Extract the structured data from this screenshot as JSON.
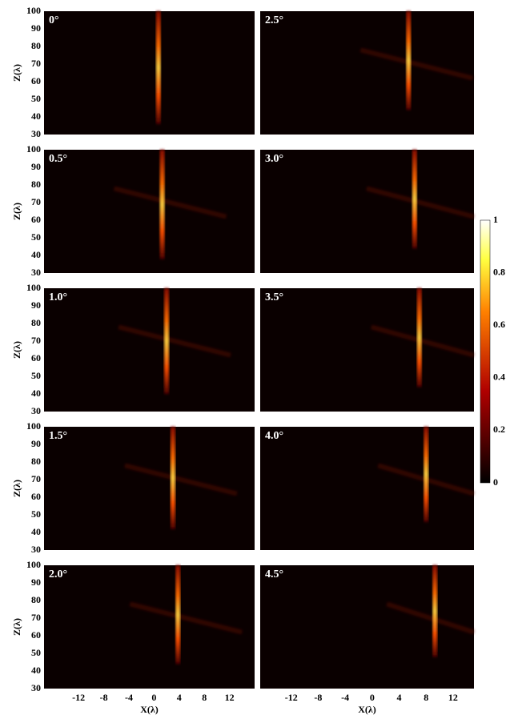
{
  "chart_data": [
    {
      "type": "heatmap",
      "label": "0°",
      "beam_x": 0.7,
      "beam_z": [
        36,
        100
      ],
      "xlim": [
        -17.5,
        16
      ],
      "ylim": [
        30,
        100
      ],
      "yticks": [
        30,
        40,
        50,
        60,
        70,
        80,
        90,
        100
      ],
      "ylabel": "Z(λ)"
    },
    {
      "type": "heatmap",
      "label": "0.5°",
      "beam_x": 1.3,
      "beam_z": [
        38,
        100
      ],
      "xlim": [
        -17.5,
        16
      ],
      "ylim": [
        30,
        100
      ],
      "yticks": [
        30,
        40,
        50,
        60,
        70,
        80,
        90,
        100
      ],
      "ylabel": "Z(λ)"
    },
    {
      "type": "heatmap",
      "label": "1.0°",
      "beam_x": 2,
      "beam_z": [
        40,
        100
      ],
      "xlim": [
        -17.5,
        16
      ],
      "ylim": [
        30,
        100
      ],
      "yticks": [
        30,
        40,
        50,
        60,
        70,
        80,
        90,
        100
      ],
      "ylabel": "Z(λ)"
    },
    {
      "type": "heatmap",
      "label": "1.5°",
      "beam_x": 3,
      "beam_z": [
        42,
        100
      ],
      "xlim": [
        -17.5,
        16
      ],
      "ylim": [
        30,
        100
      ],
      "yticks": [
        30,
        40,
        50,
        60,
        70,
        80,
        90,
        100
      ],
      "ylabel": "Z(λ)"
    },
    {
      "type": "heatmap",
      "label": "2.0°",
      "beam_x": 3.8,
      "beam_z": [
        44,
        100
      ],
      "xlim": [
        -17.5,
        16
      ],
      "ylim": [
        30,
        100
      ],
      "yticks": [
        30,
        40,
        50,
        60,
        70,
        80,
        90,
        100
      ],
      "ylabel": "Z(λ)",
      "xticks": [
        -12,
        -8,
        -4,
        0,
        4,
        8,
        12
      ],
      "xlabel": "X(λ)"
    },
    {
      "type": "heatmap",
      "label": "2.5°",
      "beam_x": 5.4,
      "beam_z": [
        44,
        100
      ],
      "xlim": [
        -16.6,
        15.1
      ],
      "ylim": [
        30,
        100
      ]
    },
    {
      "type": "heatmap",
      "label": "3.0°",
      "beam_x": 6.3,
      "beam_z": [
        44,
        100
      ],
      "xlim": [
        -16.6,
        15.1
      ],
      "ylim": [
        30,
        100
      ]
    },
    {
      "type": "heatmap",
      "label": "3.5°",
      "beam_x": 7,
      "beam_z": [
        44,
        100
      ],
      "xlim": [
        -16.6,
        15.1
      ],
      "ylim": [
        30,
        100
      ]
    },
    {
      "type": "heatmap",
      "label": "4.0°",
      "beam_x": 8,
      "beam_z": [
        46,
        100
      ],
      "xlim": [
        -16.6,
        15.1
      ],
      "ylim": [
        30,
        100
      ]
    },
    {
      "type": "heatmap",
      "label": "4.5°",
      "beam_x": 9.3,
      "beam_z": [
        48,
        100
      ],
      "xlim": [
        -16.6,
        15.1
      ],
      "ylim": [
        30,
        100
      ],
      "xticks": [
        -12,
        -8,
        -4,
        0,
        4,
        8,
        12
      ],
      "xlabel": "X(λ)"
    },
    {
      "type": "colorbar",
      "ylim": [
        0,
        1
      ],
      "yticks": [
        0,
        0.2,
        0.4,
        0.6,
        0.8,
        1
      ]
    }
  ]
}
